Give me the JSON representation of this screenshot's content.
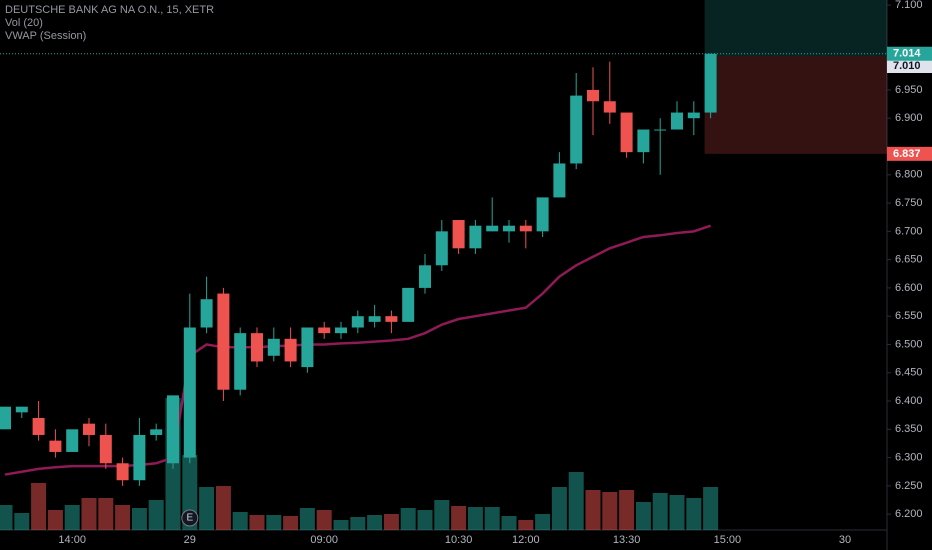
{
  "chart_data": {
    "type": "candlestick",
    "title": "DEUTSCHE BANK AG NA O.N., 15, XETR",
    "indicators": [
      "Vol (20)",
      "VWAP (Session)"
    ],
    "categories": [
      null,
      null,
      null,
      null,
      "14:00",
      null,
      null,
      null,
      null,
      null,
      null,
      "29",
      null,
      null,
      null,
      null,
      null,
      null,
      null,
      "09:00",
      null,
      null,
      null,
      null,
      null,
      null,
      null,
      "10:30",
      null,
      null,
      null,
      "12:00",
      null,
      null,
      null,
      null,
      null,
      "13:30",
      null,
      null,
      null,
      null,
      null,
      "15:00",
      null,
      null,
      null,
      null,
      null,
      null,
      "30"
    ],
    "open": [
      6.35,
      6.38,
      6.37,
      6.33,
      6.31,
      6.36,
      6.34,
      6.29,
      6.26,
      6.34,
      6.29,
      6.3,
      6.53,
      6.59,
      6.42,
      6.52,
      6.48,
      6.51,
      6.46,
      6.53,
      6.52,
      6.53,
      6.54,
      6.55,
      6.54,
      6.6,
      6.64,
      6.72,
      6.67,
      6.7,
      6.7,
      6.71,
      6.7,
      6.76,
      6.82,
      6.95,
      6.93,
      6.91,
      6.84,
      6.88,
      6.88,
      6.9,
      6.91,
      null,
      null,
      null,
      null,
      null,
      null,
      null,
      null
    ],
    "high": [
      6.39,
      6.39,
      6.4,
      6.35,
      6.35,
      6.37,
      6.36,
      6.3,
      6.37,
      6.36,
      6.41,
      6.59,
      6.62,
      6.6,
      6.53,
      6.53,
      6.53,
      6.53,
      6.53,
      6.54,
      6.54,
      6.56,
      6.57,
      6.56,
      6.6,
      6.66,
      6.72,
      6.72,
      6.72,
      6.76,
      6.72,
      6.72,
      6.76,
      6.84,
      6.98,
      6.99,
      7.0,
      6.91,
      6.88,
      6.9,
      6.93,
      6.93,
      7.014,
      null,
      null,
      null,
      null,
      null,
      null,
      null,
      null
    ],
    "low": [
      6.35,
      6.37,
      6.33,
      6.3,
      6.31,
      6.32,
      6.28,
      6.25,
      6.25,
      6.33,
      6.28,
      6.29,
      6.52,
      6.4,
      6.41,
      6.46,
      6.47,
      6.46,
      6.45,
      6.51,
      6.51,
      6.52,
      6.53,
      6.52,
      6.54,
      6.59,
      6.63,
      6.66,
      6.66,
      6.7,
      6.68,
      6.67,
      6.69,
      6.76,
      6.81,
      6.87,
      6.89,
      6.83,
      6.82,
      6.8,
      6.88,
      6.87,
      6.9,
      null,
      null,
      null,
      null,
      null,
      null,
      null,
      null
    ],
    "close": [
      6.39,
      6.39,
      6.34,
      6.31,
      6.35,
      6.34,
      6.29,
      6.26,
      6.34,
      6.35,
      6.41,
      6.53,
      6.58,
      6.42,
      6.52,
      6.47,
      6.51,
      6.47,
      6.53,
      6.52,
      6.53,
      6.55,
      6.55,
      6.54,
      6.6,
      6.64,
      6.7,
      6.67,
      6.71,
      6.71,
      6.71,
      6.7,
      6.76,
      6.82,
      6.94,
      6.93,
      6.91,
      6.84,
      6.88,
      6.88,
      6.91,
      6.91,
      7.014,
      null,
      null,
      null,
      null,
      null,
      null,
      null,
      null
    ],
    "volume": [
      25,
      17,
      47,
      20,
      25,
      32,
      32,
      25,
      22,
      30,
      132,
      75,
      43,
      44,
      18,
      15,
      15,
      14,
      22,
      20,
      10,
      13,
      15,
      16,
      22,
      20,
      30,
      24,
      23,
      23,
      14,
      10,
      16,
      43,
      58,
      40,
      38,
      40,
      28,
      37,
      35,
      32,
      43,
      null,
      null,
      null,
      null,
      null,
      null,
      null,
      null
    ],
    "vwap": [
      6.27,
      6.275,
      6.28,
      6.283,
      6.285,
      6.285,
      6.285,
      6.285,
      6.287,
      6.29,
      6.3,
      6.48,
      6.5,
      6.495,
      6.495,
      6.495,
      6.497,
      6.498,
      6.5,
      6.5,
      6.502,
      6.503,
      6.505,
      6.507,
      6.51,
      6.52,
      6.535,
      6.545,
      6.55,
      6.555,
      6.56,
      6.565,
      6.59,
      6.62,
      6.64,
      6.655,
      6.67,
      6.68,
      6.69,
      6.693,
      6.697,
      6.7,
      6.71,
      null,
      null,
      null,
      null,
      null,
      null,
      null,
      null
    ],
    "colors": {
      "up": "#26a69a",
      "down": "#ef5350",
      "vwap": "#8e1a56"
    },
    "ylim": [
      6.172,
      7.109
    ],
    "yticks": [
      {
        "value": 7.1,
        "label": "7.100"
      },
      {
        "value": 6.95,
        "label": "6.950"
      },
      {
        "value": 6.9,
        "label": "6.900"
      },
      {
        "value": 6.8,
        "label": "6.800"
      },
      {
        "value": 6.75,
        "label": "6.750"
      },
      {
        "value": 6.7,
        "label": "6.700"
      },
      {
        "value": 6.65,
        "label": "6.650"
      },
      {
        "value": 6.6,
        "label": "6.600"
      },
      {
        "value": 6.55,
        "label": "6.550"
      },
      {
        "value": 6.5,
        "label": "6.500"
      },
      {
        "value": 6.45,
        "label": "6.450"
      },
      {
        "value": 6.4,
        "label": "6.400"
      },
      {
        "value": 6.35,
        "label": "6.350"
      },
      {
        "value": 6.3,
        "label": "6.300"
      },
      {
        "value": 6.25,
        "label": "6.250"
      },
      {
        "value": 6.2,
        "label": "6.200"
      }
    ],
    "last_price": {
      "value": 7.014,
      "label": "7.014"
    },
    "position": {
      "entry": {
        "value": 7.01,
        "label": "7.010"
      },
      "stop": {
        "value": 6.837,
        "label": "6.837"
      }
    },
    "event_marker": {
      "label": "E",
      "category": "29"
    }
  }
}
